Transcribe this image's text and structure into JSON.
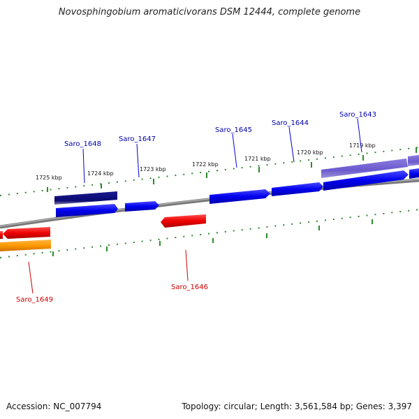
{
  "title": "Novosphingobium aromaticivorans DSM 12444, complete genome",
  "footer": {
    "accession": "Accession: NC_007794",
    "stats": "Topology: circular; Length: 3,561,584 bp; Genes: 3,397"
  },
  "colors": {
    "backbone": "#808080",
    "tick": "#2a8a2a",
    "forward_gene": "#0000ee",
    "reverse_gene": "#ee0000",
    "dark_gene": "#0a0a70",
    "purple_gene": "#6a5acd",
    "orange_gene": "#ff9900",
    "forward_label": "#0000aa",
    "reverse_label": "#cc0000"
  },
  "scale_labels": [
    "1725 kbp",
    "1724 kbp",
    "1723 kbp",
    "1722 kbp",
    "1721 kbp",
    "1720 kbp",
    "1719 kbp"
  ],
  "gene_labels": {
    "forward": [
      "Saro_1648",
      "Saro_1647",
      "Saro_1645",
      "Saro_1644",
      "Saro_1643"
    ],
    "reverse": [
      "Saro_1649",
      "Saro_1646"
    ]
  }
}
